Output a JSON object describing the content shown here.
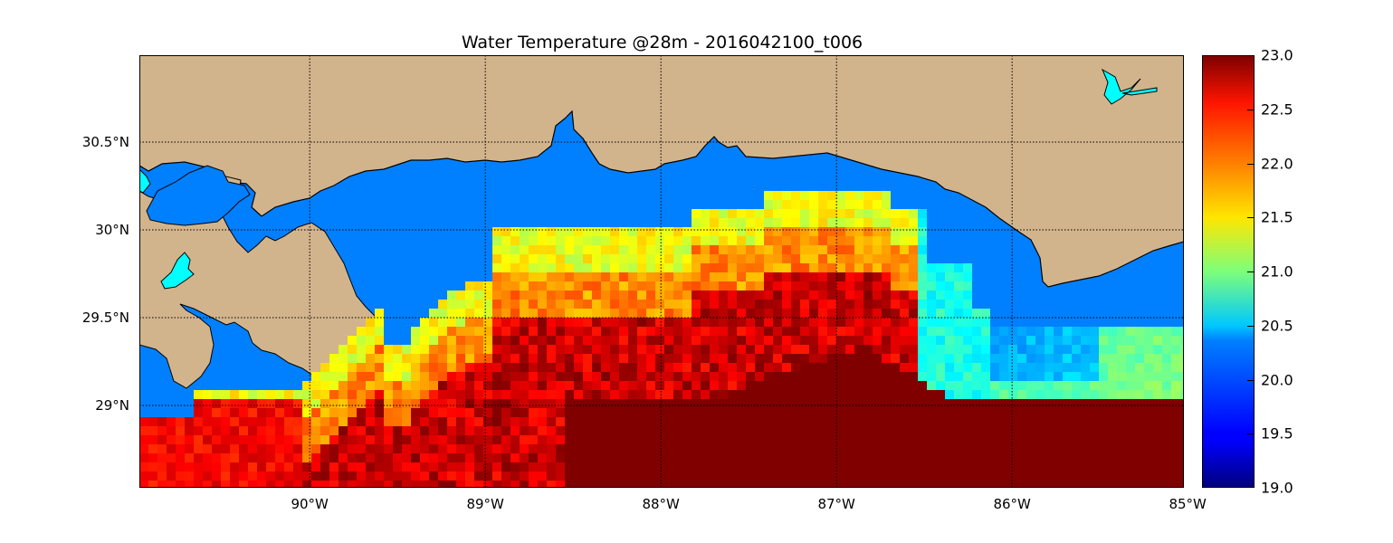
{
  "title": "Water Temperature @28m - 2016042100_t006",
  "map": {
    "lon_range": [
      -90.5,
      -84.5
    ],
    "lat_range": [
      28.55,
      31.0
    ],
    "lat_ticks": [
      {
        "value": 30.5,
        "label": "30.5°N"
      },
      {
        "value": 30.0,
        "label": "30°N"
      },
      {
        "value": 29.5,
        "label": "29.5°N"
      },
      {
        "value": 29.0,
        "label": "29°N"
      }
    ],
    "lon_ticks": [
      {
        "value": -90,
        "label": "90°W"
      },
      {
        "value": -89,
        "label": "89°W"
      },
      {
        "value": -88,
        "label": "88°W"
      },
      {
        "value": -87,
        "label": "87°W"
      },
      {
        "value": -86,
        "label": "86°W"
      },
      {
        "value": -85,
        "label": "85°W"
      }
    ],
    "grid": "dotted",
    "colors": {
      "land": "#d2b48c",
      "ocean": "#0080ff",
      "lakes": "#00ffff",
      "coastline": "#000000"
    }
  },
  "colorbar": {
    "colormap": "jet",
    "range": [
      19.0,
      23.0
    ],
    "labels": [
      "23.0",
      "22.5",
      "22.0",
      "21.5",
      "21.0",
      "20.5",
      "20.0",
      "19.5",
      "19.0"
    ]
  }
}
